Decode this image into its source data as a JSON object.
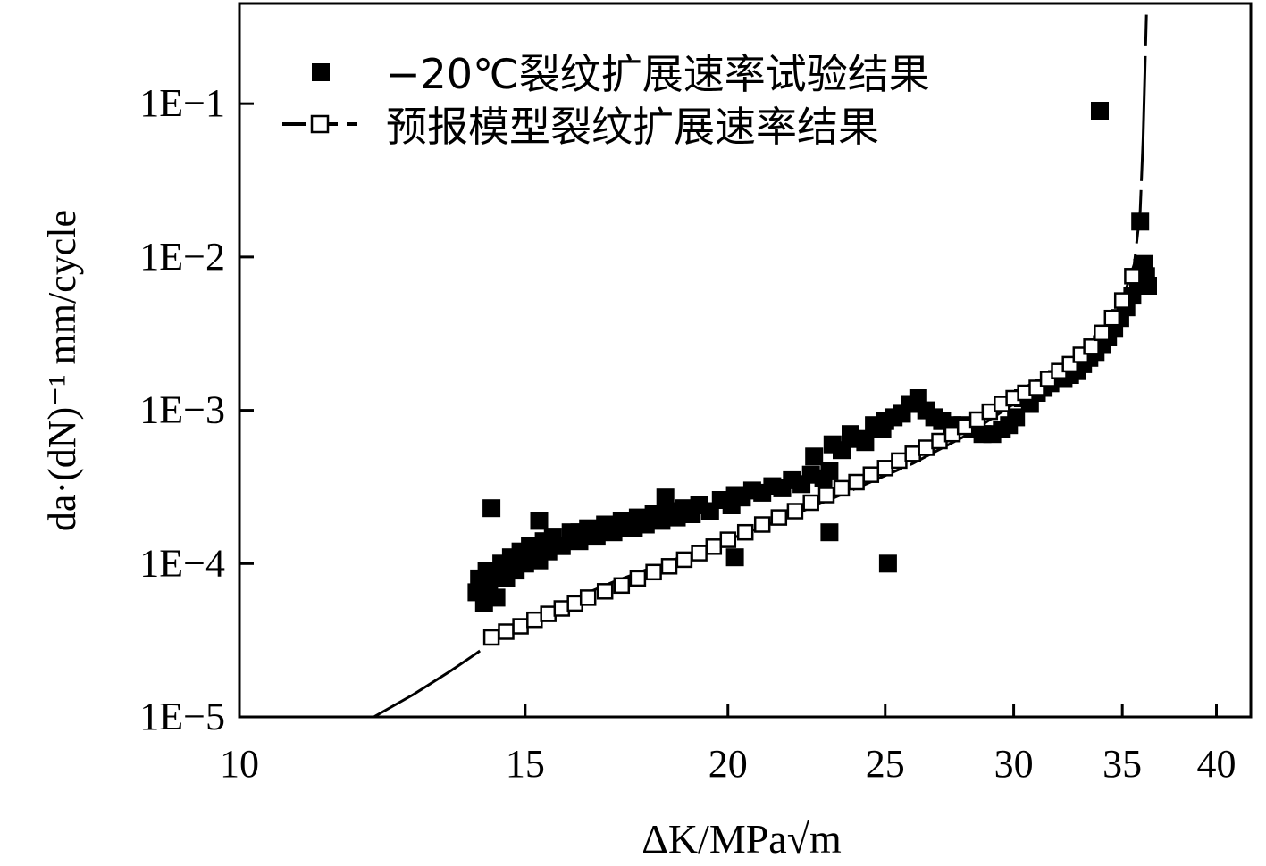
{
  "chart_data": {
    "type": "scatter",
    "title": "",
    "xlabel": "ΔK/MPa√m",
    "ylabel": "da·(dN)⁻¹ mm/cycle",
    "xscale": "log",
    "yscale": "log",
    "xlim": [
      10,
      42
    ],
    "ylim": [
      1e-05,
      0.45
    ],
    "x_ticks": [
      10,
      15,
      20,
      25,
      30,
      35,
      40
    ],
    "x_tick_labels": [
      "10",
      "15",
      "20",
      "25",
      "30",
      "35",
      "40"
    ],
    "y_ticks": [
      1e-05,
      0.0001,
      0.001,
      0.01,
      0.1
    ],
    "y_tick_labels": [
      "1E−5",
      "1E−4",
      "1E−3",
      "1E−2",
      "1E−1"
    ],
    "grid": false,
    "legend_position": "top-left",
    "colors": {
      "experiment": "#000000",
      "model_fill": "#ffffff",
      "model_stroke": "#000000"
    },
    "series": [
      {
        "name": "−20℃裂纹扩展速率试验结果",
        "marker": "filled-square",
        "x": [
          14.0,
          14.05,
          14.1,
          14.15,
          14.2,
          14.25,
          14.3,
          14.4,
          14.5,
          14.6,
          14.7,
          14.8,
          14.9,
          15.0,
          15.1,
          15.2,
          15.3,
          15.4,
          15.5,
          15.6,
          15.8,
          16.0,
          16.2,
          16.4,
          16.6,
          16.8,
          17.0,
          17.2,
          17.4,
          17.6,
          17.8,
          18.0,
          18.2,
          18.4,
          18.6,
          18.8,
          19.0,
          19.2,
          19.5,
          19.8,
          20.1,
          20.2,
          20.4,
          20.7,
          21.0,
          21.3,
          21.6,
          21.9,
          22.2,
          22.5,
          22.9,
          23.1,
          23.2,
          23.5,
          23.8,
          24.1,
          24.3,
          24.6,
          24.9,
          25.0,
          25.3,
          25.6,
          25.9,
          26.2,
          26.5,
          26.8,
          27.1,
          27.5,
          27.9,
          28.3,
          28.7,
          29.1,
          29.5,
          29.8,
          30.1,
          30.4,
          30.7,
          31.0,
          31.3,
          31.6,
          31.9,
          32.2,
          32.5,
          32.8,
          33.1,
          33.4,
          33.7,
          34.0,
          34.3,
          34.6,
          34.9,
          35.2,
          35.5,
          35.8,
          36.0,
          36.1,
          36.2,
          36.3,
          14.3,
          15.3,
          16.2,
          17.5,
          18.3,
          20.2,
          22.6,
          23.1,
          25.1,
          35.9,
          33.9
        ],
        "y": [
          6.5e-05,
          8e-05,
          7e-05,
          5.5e-05,
          9e-05,
          7.5e-05,
          8.5e-05,
          6e-05,
          0.0001,
          8e-05,
          0.00011,
          9e-05,
          0.00012,
          0.0001,
          0.00013,
          0.00011,
          0.000105,
          0.00014,
          0.00012,
          0.00015,
          0.00013,
          0.00016,
          0.00014,
          0.00017,
          0.00015,
          0.00018,
          0.00016,
          0.00019,
          0.00017,
          0.0002,
          0.00018,
          0.00021,
          0.00019,
          0.00022,
          0.0002,
          0.00023,
          0.00021,
          0.00024,
          0.00022,
          0.00026,
          0.00024,
          0.00028,
          0.00027,
          0.0003,
          0.00029,
          0.00032,
          0.00031,
          0.00035,
          0.00033,
          0.00038,
          0.00036,
          0.0004,
          0.0006,
          0.00055,
          0.0007,
          0.00065,
          0.00062,
          0.0008,
          0.00075,
          0.00085,
          0.0009,
          0.00095,
          0.0011,
          0.0012,
          0.001,
          0.0009,
          0.00085,
          0.0008,
          0.0008,
          0.00075,
          0.0007,
          0.0007,
          0.00075,
          0.0008,
          0.0009,
          0.0012,
          0.0011,
          0.0013,
          0.0014,
          0.0015,
          0.0016,
          0.0016,
          0.0017,
          0.0018,
          0.002,
          0.0022,
          0.0024,
          0.0027,
          0.003,
          0.0034,
          0.004,
          0.0047,
          0.0056,
          0.0068,
          0.0085,
          0.009,
          0.0075,
          0.0065,
          0.00023,
          0.00019,
          0.00016,
          0.00017,
          0.00027,
          0.00011,
          0.0005,
          0.00016,
          0.0001,
          0.017,
          0.09
        ]
      },
      {
        "name": "预报模型裂纹扩展速率结果",
        "marker": "open-square-with-line",
        "x": [
          14.3,
          14.6,
          14.9,
          15.2,
          15.5,
          15.8,
          16.1,
          16.4,
          16.8,
          17.2,
          17.6,
          18.0,
          18.4,
          18.8,
          19.2,
          19.6,
          20.0,
          20.5,
          21.0,
          21.5,
          22.0,
          22.5,
          23.0,
          23.5,
          24.0,
          24.5,
          25.0,
          25.5,
          26.0,
          26.5,
          27.0,
          27.5,
          28.0,
          28.5,
          29.0,
          29.5,
          30.0,
          30.5,
          31.0,
          31.5,
          32.0,
          32.5,
          33.0,
          33.5,
          34.0,
          34.5,
          35.0,
          35.5
        ],
        "y": [
          3.3e-05,
          3.6e-05,
          3.9e-05,
          4.3e-05,
          4.7e-05,
          5.1e-05,
          5.5e-05,
          6e-05,
          6.6e-05,
          7.2e-05,
          8e-05,
          8.8e-05,
          9.6e-05,
          0.000106,
          0.000117,
          0.000129,
          0.000143,
          0.00016,
          0.00018,
          0.0002,
          0.00022,
          0.00025,
          0.00028,
          0.00031,
          0.00034,
          0.00038,
          0.00042,
          0.00047,
          0.00052,
          0.00057,
          0.00063,
          0.0007,
          0.00078,
          0.00087,
          0.00098,
          0.0011,
          0.0012,
          0.0013,
          0.0014,
          0.0016,
          0.0018,
          0.002,
          0.0023,
          0.0026,
          0.0032,
          0.004,
          0.0052,
          0.0075
        ],
        "model_curve": {
          "x": [
            12.1,
            12.8,
            13.5,
            14.0,
            14.5,
            15.0,
            16.0,
            17.0,
            18.0,
            19.0,
            20.0,
            22.0,
            24.0,
            26.0,
            28.0,
            30.0,
            32.0,
            34.0,
            35.0,
            35.6,
            35.9,
            36.05,
            36.15,
            36.22
          ],
          "y": [
            1e-05,
            1.4e-05,
            2e-05,
            2.6e-05,
            3.4e-05,
            4.2e-05,
            5.8e-05,
            7.6e-05,
            9.5e-05,
            0.000117,
            0.000143,
            0.00021,
            0.00031,
            0.00045,
            0.00068,
            0.0011,
            0.0016,
            0.0028,
            0.0052,
            0.009,
            0.02,
            0.06,
            0.18,
            0.38
          ]
        }
      }
    ]
  }
}
